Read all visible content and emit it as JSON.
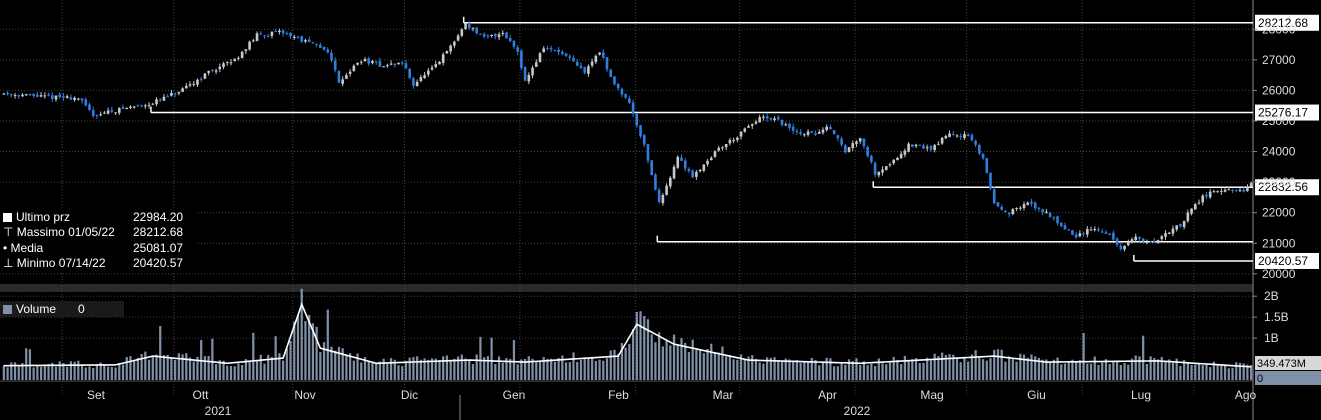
{
  "chart_data": [
    {
      "type": "candlestick",
      "ylim": [
        19700,
        28500
      ],
      "y_ticks": [
        "28000",
        "27000",
        "26000",
        "25000",
        "24000",
        "23000",
        "22000",
        "21000",
        "20000"
      ],
      "x_months": [
        "Set",
        "Ott",
        "Nov",
        "Dic",
        "Gen",
        "Feb",
        "Mar",
        "Apr",
        "Mag",
        "Giu",
        "Lug",
        "Ago"
      ],
      "x_years": [
        "2021",
        "2022"
      ],
      "colors": {
        "up": "#c8c8c8",
        "down": "#2f7fe0",
        "lines": "#ffffff"
      },
      "path": [
        [
          0,
          25900
        ],
        [
          10,
          25800
        ],
        [
          20,
          25750
        ],
        [
          24,
          25200
        ],
        [
          32,
          25400
        ],
        [
          40,
          25600
        ],
        [
          48,
          26000
        ],
        [
          55,
          26600
        ],
        [
          62,
          27000
        ],
        [
          68,
          27800
        ],
        [
          75,
          27900
        ],
        [
          81,
          27600
        ],
        [
          87,
          27300
        ],
        [
          90,
          26300
        ],
        [
          96,
          27000
        ],
        [
          102,
          26800
        ],
        [
          107,
          26900
        ],
        [
          110,
          26200
        ],
        [
          116,
          26800
        ],
        [
          121,
          27600
        ],
        [
          124,
          28200
        ],
        [
          129,
          27700
        ],
        [
          134,
          27900
        ],
        [
          138,
          27300
        ],
        [
          140,
          26300
        ],
        [
          145,
          27400
        ],
        [
          150,
          27200
        ],
        [
          156,
          26600
        ],
        [
          160,
          27300
        ],
        [
          163,
          26400
        ],
        [
          168,
          25600
        ],
        [
          172,
          24200
        ],
        [
          176,
          22300
        ],
        [
          181,
          23800
        ],
        [
          185,
          23200
        ],
        [
          192,
          24100
        ],
        [
          197,
          24500
        ],
        [
          203,
          25100
        ],
        [
          208,
          25000
        ],
        [
          213,
          24600
        ],
        [
          218,
          24600
        ],
        [
          222,
          24800
        ],
        [
          226,
          24000
        ],
        [
          230,
          24500
        ],
        [
          234,
          23300
        ],
        [
          238,
          23600
        ],
        [
          243,
          24200
        ],
        [
          249,
          24100
        ],
        [
          254,
          24600
        ],
        [
          259,
          24500
        ],
        [
          263,
          23800
        ],
        [
          266,
          22300
        ],
        [
          270,
          22000
        ],
        [
          275,
          22300
        ],
        [
          280,
          22000
        ],
        [
          284,
          21600
        ],
        [
          288,
          21200
        ],
        [
          292,
          21500
        ],
        [
          297,
          21300
        ],
        [
          300,
          20800
        ],
        [
          304,
          21200
        ],
        [
          308,
          21000
        ],
        [
          312,
          21300
        ],
        [
          316,
          21600
        ],
        [
          320,
          22300
        ],
        [
          324,
          22700
        ],
        [
          329,
          22700
        ],
        [
          333,
          22700
        ],
        [
          335,
          22984
        ]
      ],
      "reference_levels": [
        {
          "label": "28212.68",
          "value": 28212.68,
          "from_day": 124
        },
        {
          "label": "25276.17",
          "value": 25276.17,
          "from_day": 40
        },
        {
          "label": "22832.56",
          "value": 22832.56,
          "from_day": 234
        },
        {
          "label": "",
          "value": 21050,
          "from_day": 176
        },
        {
          "label": "20420.57",
          "value": 20420.57,
          "from_day": 304
        }
      ],
      "legend": [
        {
          "label": "Ultimo prz",
          "value": "22984.20"
        },
        {
          "label": "Massimo 01/05/22",
          "value": "28212.68"
        },
        {
          "label": "Media",
          "value": "25081.07"
        },
        {
          "label": "Minimo 07/14/22",
          "value": "20420.57"
        }
      ]
    },
    {
      "type": "bar",
      "ylim": [
        0,
        2100000000
      ],
      "y_ticks": [
        "2B",
        "1.5B",
        "1B"
      ],
      "tags": [
        "349.473M",
        "0"
      ],
      "average_line": "#ffffff",
      "colors": {
        "bar": "#8090a8"
      },
      "volume_path": [
        [
          0,
          360000000
        ],
        [
          30,
          380000000
        ],
        [
          40,
          600000000
        ],
        [
          60,
          420000000
        ],
        [
          75,
          550000000
        ],
        [
          80,
          1900000000
        ],
        [
          85,
          800000000
        ],
        [
          100,
          420000000
        ],
        [
          125,
          500000000
        ],
        [
          140,
          450000000
        ],
        [
          165,
          600000000
        ],
        [
          170,
          1400000000
        ],
        [
          180,
          900000000
        ],
        [
          200,
          500000000
        ],
        [
          230,
          420000000
        ],
        [
          266,
          600000000
        ],
        [
          280,
          450000000
        ],
        [
          310,
          480000000
        ],
        [
          335,
          330000000
        ]
      ],
      "legend": {
        "label": "Volume",
        "value": "0"
      }
    }
  ]
}
